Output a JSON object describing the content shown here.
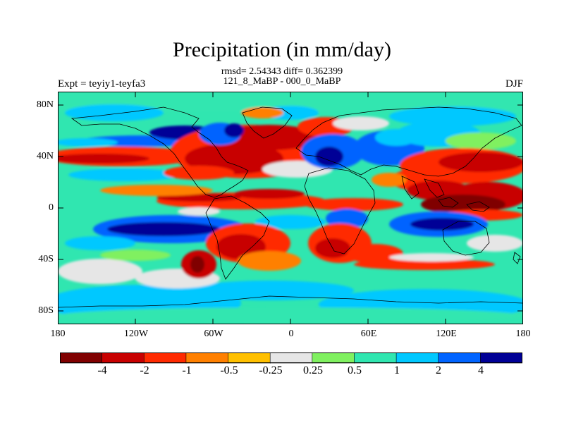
{
  "title": "Precipitation (in mm/day)",
  "stats_line": "rmsd= 2.54343 diff= 0.362399",
  "period_line": "121_8_MaBP - 000_0_MaBP",
  "experiment": "Expt = teyiy1-teyfa3",
  "season": "DJF",
  "lat_labels": [
    "80N",
    "40N",
    "0",
    "40S",
    "80S"
  ],
  "lon_labels": [
    "180",
    "120W",
    "60W",
    "0",
    "60E",
    "120E",
    "180"
  ],
  "colorbar": {
    "labels": [
      "-4",
      "-2",
      "-1",
      "-0.5",
      "-0.25",
      "0.25",
      "0.5",
      "1",
      "2",
      "4"
    ],
    "colors": [
      "#800000",
      "#c80000",
      "#ff2a00",
      "#ff8000",
      "#ffc000",
      "#e6e6e6",
      "#80f060",
      "#30e6b0",
      "#00c8ff",
      "#0064ff",
      "#000096"
    ]
  }
}
